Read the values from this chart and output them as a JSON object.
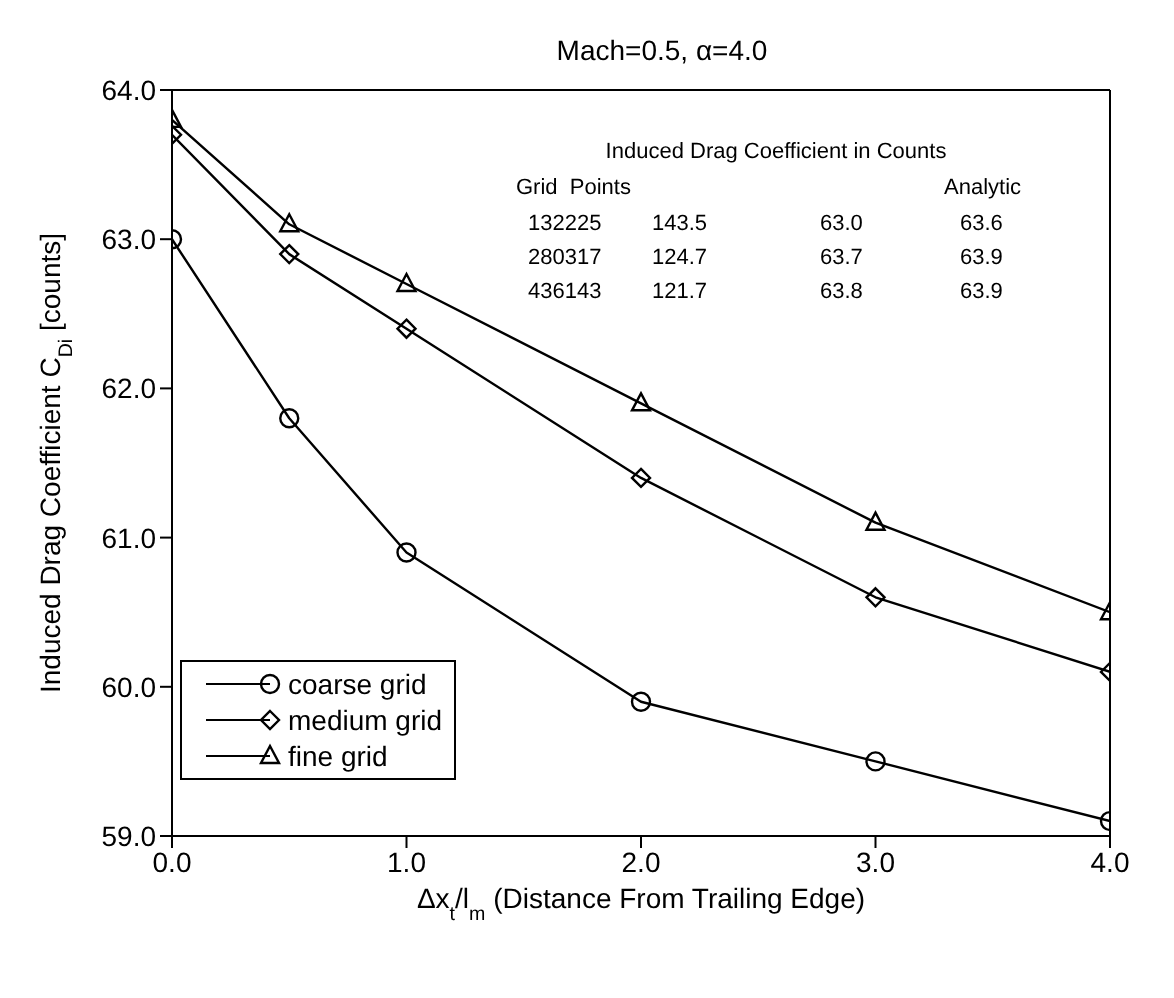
{
  "chart_data": {
    "type": "line",
    "title": "Mach=0.5, α=4.0",
    "xlabel": "Δx$_{t}$/l$_{m}$ (Distance From Trailing Edge)",
    "ylabel": "Induced Drag Coefficient C$_{Di}$ [counts]",
    "annotations": [
      "Induced Drag Coefficient in Counts",
      "Grid  Points",
      "Analytic",
      "132225 143.5 63.0 63.6",
      "280317 124.7 63.7 63.9",
      "436143 121.7 63.8 63.9"
    ],
    "x": [
      0,
      0.5,
      1,
      2,
      3,
      4
    ],
    "series": [
      {
        "name": "coarse grid",
        "color": "#000000",
        "marker": "circle",
        "values": [
          63.0,
          61.8,
          60.9,
          59.9,
          59.5,
          59.1
        ]
      },
      {
        "name": "medium grid",
        "color": "#000000",
        "marker": "diamond",
        "values": [
          63.7,
          62.9,
          62.4,
          61.4,
          60.6,
          60.1
        ]
      },
      {
        "name": "fine grid",
        "color": "#000000",
        "marker": "triangle",
        "values": [
          63.8,
          63.1,
          62.7,
          61.9,
          61.1,
          60.5
        ]
      }
    ],
    "xlim": [
      0,
      4
    ],
    "xticks": [
      {
        "value": 0,
        "label": "0.0"
      },
      {
        "value": 1,
        "label": "1.0"
      },
      {
        "value": 2,
        "label": "2.0"
      },
      {
        "value": 3,
        "label": "3.0"
      },
      {
        "value": 4,
        "label": "4.0"
      }
    ],
    "ylim": [
      59,
      64
    ],
    "yticks": [
      {
        "value": 59,
        "label": "59.0"
      },
      {
        "value": 60,
        "label": "60.0"
      },
      {
        "value": 61,
        "label": "61.0"
      },
      {
        "value": 62,
        "label": "62.0"
      },
      {
        "value": 63,
        "label": "63.0"
      },
      {
        "value": 64,
        "label": "64.0"
      }
    ],
    "grid": false,
    "legend": "bottom left",
    "line_style": "solid"
  }
}
